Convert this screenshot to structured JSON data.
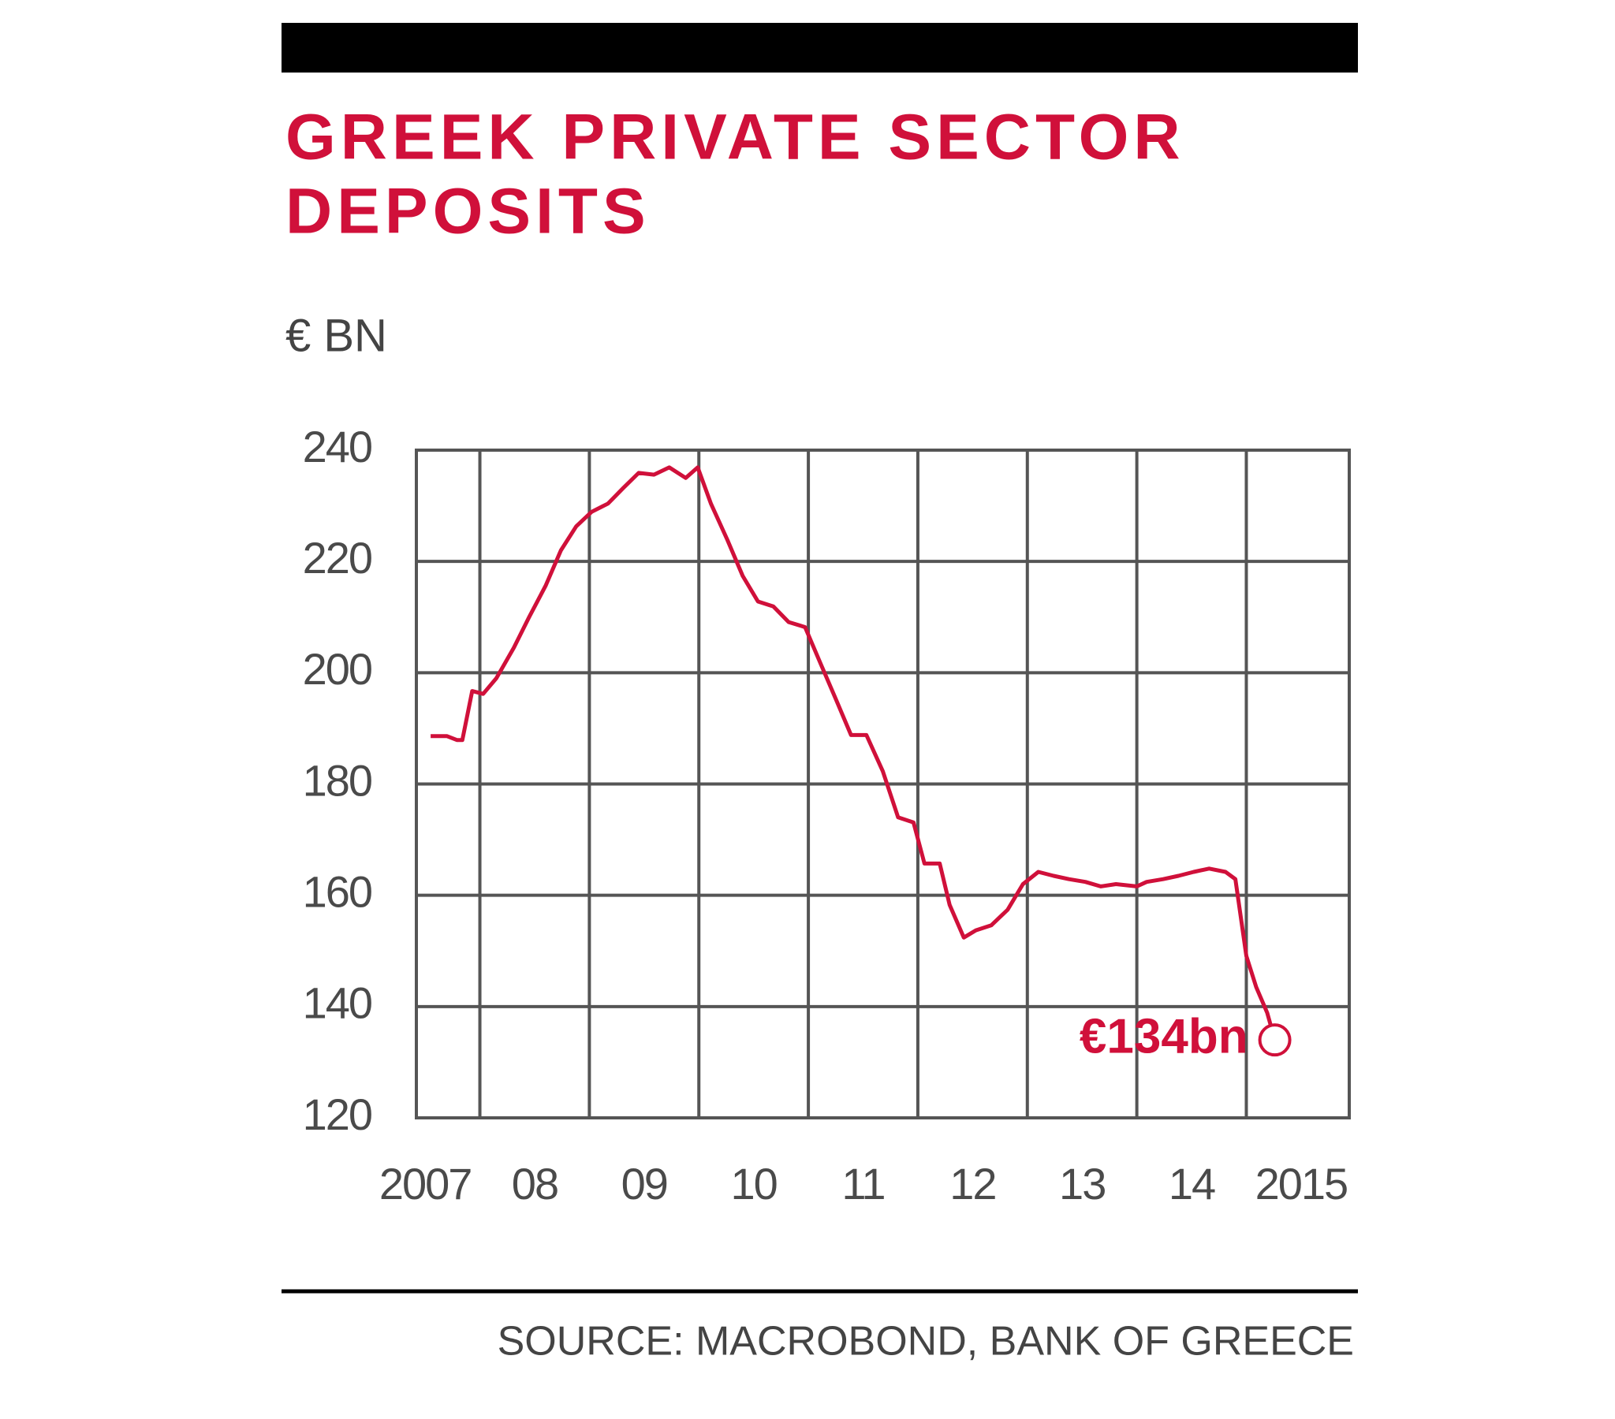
{
  "chart_data": {
    "type": "line",
    "title": [
      "GREEK PRIVATE SECTOR",
      "DEPOSITS"
    ],
    "y_label": "€ BN",
    "source": "SOURCE: MACROBOND, BANK OF GREECE",
    "xlim": [
      2007.42,
      2015.94
    ],
    "xticks": [
      {
        "value": 2007.5,
        "label": "2007"
      },
      {
        "value": 2008.5,
        "label": "08"
      },
      {
        "value": 2009.5,
        "label": "09"
      },
      {
        "value": 2010.5,
        "label": "10"
      },
      {
        "value": 2011.5,
        "label": "11"
      },
      {
        "value": 2012.5,
        "label": "12"
      },
      {
        "value": 2013.5,
        "label": "13"
      },
      {
        "value": 2014.5,
        "label": "14"
      },
      {
        "value": 2015.5,
        "label": "2015"
      }
    ],
    "xgrid": [
      2008,
      2009,
      2010,
      2011,
      2012,
      2013,
      2014,
      2015
    ],
    "ylim": [
      120,
      240
    ],
    "yticks": [
      120,
      140,
      160,
      180,
      200,
      220,
      240
    ],
    "grid": true,
    "series": [
      {
        "name": "Deposits",
        "color": "#d0103a",
        "x": [
          2007.55,
          2007.7,
          2007.79,
          2007.84,
          2007.93,
          2008.03,
          2008.15,
          2008.31,
          2008.45,
          2008.6,
          2008.74,
          2008.88,
          2009.02,
          2009.17,
          2009.31,
          2009.45,
          2009.59,
          2009.73,
          2009.88,
          2009.99,
          2010.11,
          2010.26,
          2010.4,
          2010.54,
          2010.68,
          2010.82,
          2010.97,
          2011.11,
          2011.25,
          2011.39,
          2011.53,
          2011.68,
          2011.82,
          2011.96,
          2012.06,
          2012.2,
          2012.29,
          2012.42,
          2012.53,
          2012.67,
          2012.82,
          2012.96,
          2013.1,
          2013.24,
          2013.38,
          2013.53,
          2013.67,
          2013.81,
          2014.0,
          2014.09,
          2014.24,
          2014.38,
          2014.52,
          2014.66,
          2014.81,
          2014.9,
          2015.0,
          2015.09,
          2015.19,
          2015.26
        ],
        "values": [
          188.6,
          188.6,
          187.9,
          187.9,
          196.7,
          196.2,
          199.0,
          204.5,
          210.0,
          215.6,
          222.0,
          226.3,
          228.9,
          230.4,
          233.2,
          235.9,
          235.6,
          236.9,
          235.0,
          236.9,
          230.4,
          223.9,
          217.4,
          212.8,
          211.9,
          209.1,
          208.2,
          201.7,
          195.3,
          188.8,
          188.8,
          182.3,
          174.0,
          173.1,
          165.7,
          165.7,
          158.3,
          152.4,
          153.7,
          154.6,
          157.4,
          162.0,
          164.2,
          163.5,
          162.9,
          162.4,
          161.6,
          162.0,
          161.6,
          162.4,
          162.9,
          163.5,
          164.2,
          164.8,
          164.2,
          162.9,
          149.1,
          143.5,
          138.9,
          134
        ]
      }
    ],
    "annotations": [
      {
        "text": "€134bn",
        "x": 2015.26,
        "y": 134
      }
    ]
  }
}
